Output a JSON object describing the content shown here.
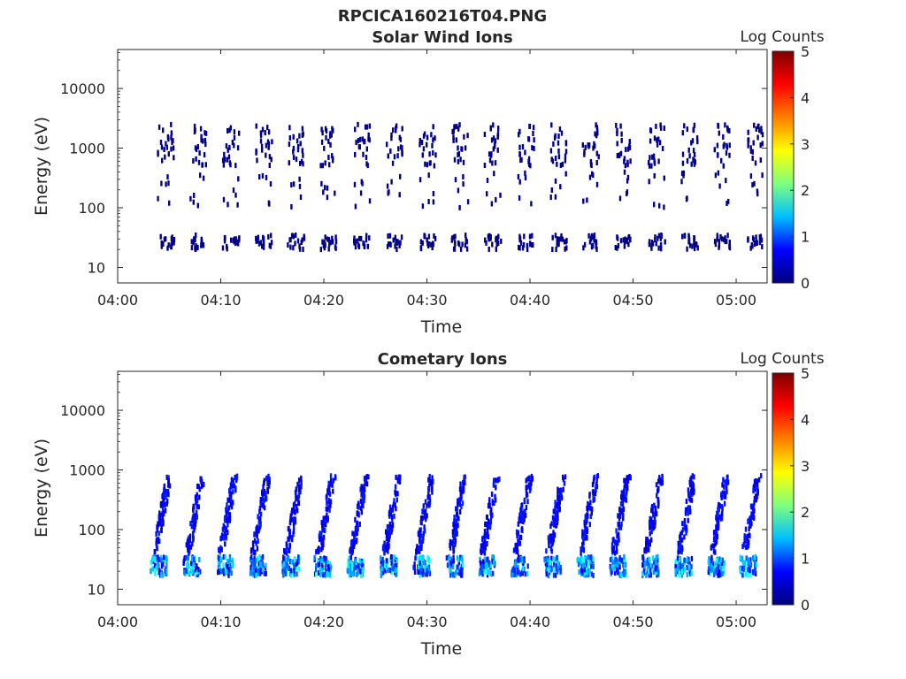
{
  "figure": {
    "title": "RPCICA160216T04.PNG"
  },
  "colorbar": {
    "label": "Log Counts",
    "ticks": [
      "0",
      "1",
      "2",
      "3",
      "4",
      "5"
    ],
    "range": [
      0,
      5
    ],
    "colormap": "jet",
    "colors": [
      "#00007f",
      "#0000ff",
      "#00bfff",
      "#7fff7f",
      "#ffff00",
      "#ff7f00",
      "#ff0000",
      "#7f0000"
    ]
  },
  "colors": {
    "frame": "#262626",
    "background": "#ffffff",
    "data_low": "#00008b"
  },
  "chart_data": [
    {
      "type": "heatmap",
      "title": "Solar Wind Ions",
      "xlabel": "Time",
      "ylabel": "Energy (eV)",
      "x_ticks": [
        "04:00",
        "04:10",
        "04:20",
        "04:30",
        "04:40",
        "04:50",
        "05:00"
      ],
      "x_tick_minutes": [
        0,
        10,
        20,
        30,
        40,
        50,
        60
      ],
      "xlim_minutes": [
        0,
        63
      ],
      "y_ticks": [
        "10",
        "100",
        "1000",
        "10000"
      ],
      "y_tick_values": [
        10,
        100,
        1000,
        10000
      ],
      "ylim": [
        5.5,
        45000
      ],
      "yscale": "log",
      "z_label": "Log Counts",
      "z_range": [
        0,
        5
      ],
      "sweep_start_minutes": [
        3.8,
        6.9,
        10.1,
        13.3,
        16.4,
        19.6,
        22.8,
        26.0,
        29.2,
        32.3,
        35.5,
        38.7,
        41.9,
        45.0,
        48.2,
        51.4,
        54.6,
        57.7,
        60.9
      ],
      "bands": [
        {
          "name": "low-energy",
          "e_min": 20,
          "e_max": 35,
          "log_counts": 0.3
        },
        {
          "name": "high-energy",
          "e_min": 500,
          "e_max": 2500,
          "log_counts": 0.3
        },
        {
          "name": "mid-energy",
          "e_min": 100,
          "e_max": 400,
          "log_counts": 0.2
        }
      ]
    },
    {
      "type": "heatmap",
      "title": "Cometary Ions",
      "xlabel": "Time",
      "ylabel": "Energy (eV)",
      "x_ticks": [
        "04:00",
        "04:10",
        "04:20",
        "04:30",
        "04:40",
        "04:50",
        "05:00"
      ],
      "x_tick_minutes": [
        0,
        10,
        20,
        30,
        40,
        50,
        60
      ],
      "xlim_minutes": [
        0,
        63
      ],
      "y_ticks": [
        "10",
        "100",
        "1000",
        "10000"
      ],
      "y_tick_values": [
        10,
        100,
        1000,
        10000
      ],
      "ylim": [
        5.5,
        45000
      ],
      "yscale": "log",
      "z_label": "Log Counts",
      "z_range": [
        0,
        5
      ],
      "sweep_start_minutes": [
        3.1,
        6.3,
        9.5,
        12.7,
        15.9,
        19.0,
        22.2,
        25.4,
        28.6,
        31.8,
        34.9,
        38.1,
        41.3,
        44.5,
        47.6,
        50.8,
        54.0,
        57.2,
        60.3
      ],
      "bands": [
        {
          "name": "low-energy",
          "e_min": 17,
          "e_max": 35,
          "log_counts": 1.2
        },
        {
          "name": "rising-arc",
          "e_min": 40,
          "e_max": 800,
          "log_counts": 0.6
        }
      ]
    }
  ]
}
